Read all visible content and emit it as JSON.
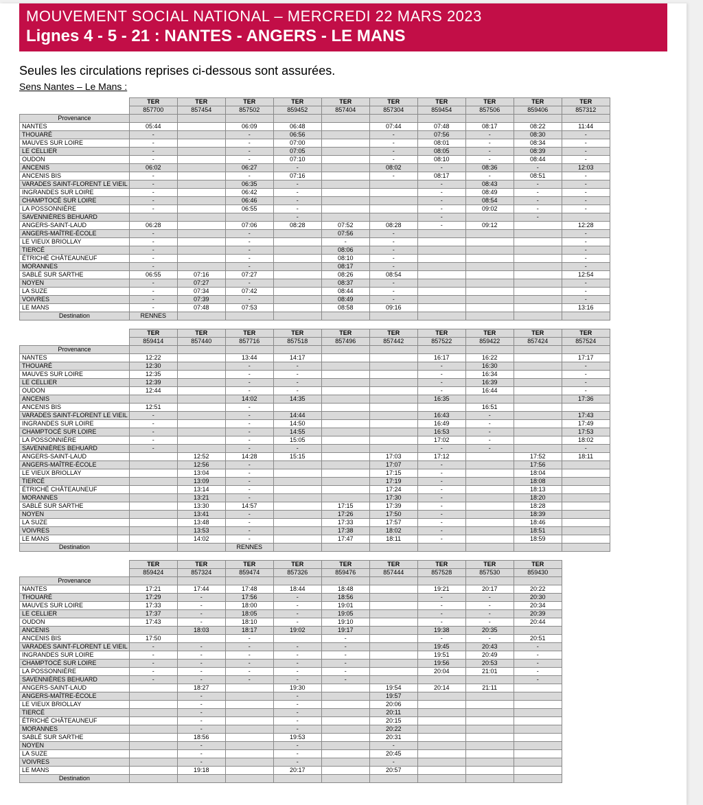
{
  "colors": {
    "banner_bg": "#c20e47",
    "banner_fg": "#ffffff",
    "grid": "#888888",
    "shade": "#d9d9d9"
  },
  "banner": {
    "title": "MOUVEMENT SOCIAL NATIONAL – MERCREDI 22 MARS 2023",
    "subtitle": "Lignes 4 - 5 - 21 : NANTES - ANGERS - LE MANS"
  },
  "intro": "Seules les circulations reprises ci-dessous sont assurées.",
  "direction": "Sens Nantes – Le Mans :",
  "labels": {
    "ter": "TER",
    "provenance": "Provenance",
    "destination": "Destination",
    "rennes": "RENNES"
  },
  "stations": [
    "NANTES",
    "THOUARÉ",
    "MAUVES SUR LOIRE",
    "LE CELLIER",
    "OUDON",
    "ANCENIS",
    "ANCENIS BIS",
    "VARADES SAINT-FLORENT LE VIEIL",
    "INGRANDES SUR LOIRE",
    "CHAMPTOCÉ SUR LOIRE",
    "LA POSSONNIÈRE",
    "SAVENNIÈRES BEHUARD",
    "ANGERS-SAINT-LAUD",
    "ANGERS-MAÎTRE-ÉCOLE",
    "LE VIEUX BRIOLLAY",
    "TIERCÉ",
    "ÉTRICHÉ CHÂTEAUNEUF",
    "MORANNES",
    "SABLÉ SUR SARTHE",
    "NOYEN",
    "LA SUZE",
    "VOIVRES",
    "LE MANS"
  ],
  "tables": [
    {
      "trains": [
        "857700",
        "857454",
        "857502",
        "859452",
        "857404",
        "857304",
        "859454",
        "857506",
        "859406",
        "857312"
      ],
      "dest_row": [
        "RENNES",
        "",
        "",
        "",
        "",
        "",
        "",
        "",
        "",
        ""
      ],
      "rows": [
        [
          "05:44",
          "",
          "06:09",
          "06:48",
          "",
          "07:44",
          "07:48",
          "08:17",
          "08:22",
          "11:44"
        ],
        [
          "-",
          "",
          "-",
          "06:56",
          "",
          "-",
          "07:56",
          "-",
          "08:30",
          "-"
        ],
        [
          "-",
          "",
          "-",
          "07:00",
          "",
          "-",
          "08:01",
          "-",
          "08:34",
          "-"
        ],
        [
          "-",
          "",
          "-",
          "07:05",
          "",
          "-",
          "08:05",
          "-",
          "08:39",
          "-"
        ],
        [
          "-",
          "",
          "-",
          "07:10",
          "",
          "-",
          "08:10",
          "-",
          "08:44",
          "-"
        ],
        [
          "06:02",
          "",
          "06:27",
          "-",
          "",
          "08:02",
          "-",
          "08:36",
          "-",
          "12:03"
        ],
        [
          "-",
          "",
          "-",
          "07:16",
          "",
          "-",
          "08:17",
          "-",
          "08:51",
          "-"
        ],
        [
          "-",
          "",
          "06:35",
          "-",
          "",
          "",
          "-",
          "08:43",
          "-",
          "-"
        ],
        [
          "-",
          "",
          "06:42",
          "-",
          "",
          "",
          "-",
          "08:49",
          "-",
          "-"
        ],
        [
          "-",
          "",
          "06:46",
          "-",
          "",
          "",
          "-",
          "08:54",
          "-",
          "-"
        ],
        [
          "-",
          "",
          "06:55",
          "-",
          "",
          "",
          "-",
          "09:02",
          "-",
          "-"
        ],
        [
          "",
          "",
          "",
          "-",
          "",
          "",
          "-",
          "",
          "-",
          ""
        ],
        [
          "06:28",
          "",
          "07:06",
          "08:28",
          "07:52",
          "08:28",
          "-",
          "09:12",
          "",
          "12:28"
        ],
        [
          "-",
          "",
          "-",
          "",
          "07:56",
          "-",
          "",
          "",
          "",
          "-"
        ],
        [
          "-",
          "",
          "-",
          "",
          "-",
          "-",
          "",
          "",
          "",
          "-"
        ],
        [
          "-",
          "",
          "-",
          "",
          "08:06",
          "-",
          "",
          "",
          "",
          "-"
        ],
        [
          "-",
          "",
          "-",
          "",
          "08:10",
          "-",
          "",
          "",
          "",
          "-"
        ],
        [
          "-",
          "",
          "-",
          "",
          "08:17",
          "-",
          "",
          "",
          "",
          "-"
        ],
        [
          "06:55",
          "07:16",
          "07:27",
          "",
          "08:26",
          "08:54",
          "",
          "",
          "",
          "12:54"
        ],
        [
          "-",
          "07:27",
          "-",
          "",
          "08:37",
          "-",
          "",
          "",
          "",
          "-"
        ],
        [
          "-",
          "07:34",
          "07:42",
          "",
          "08:44",
          "-",
          "",
          "",
          "",
          "-"
        ],
        [
          "-",
          "07:39",
          "-",
          "",
          "08:49",
          "-",
          "",
          "",
          "",
          "-"
        ],
        [
          "-",
          "07:48",
          "07:53",
          "",
          "08:58",
          "09:16",
          "",
          "",
          "",
          "13:16"
        ]
      ]
    },
    {
      "trains": [
        "859414",
        "857440",
        "857716",
        "857518",
        "857496",
        "857442",
        "857522",
        "859422",
        "857424",
        "857524"
      ],
      "dest_row": [
        "",
        "",
        "RENNES",
        "",
        "",
        "",
        "",
        "",
        "",
        ""
      ],
      "rows": [
        [
          "12:22",
          "",
          "13:44",
          "14:17",
          "",
          "",
          "16:17",
          "16:22",
          "",
          "17:17"
        ],
        [
          "12:30",
          "",
          "-",
          "-",
          "",
          "",
          "-",
          "16:30",
          "",
          "-"
        ],
        [
          "12:35",
          "",
          "-",
          "-",
          "",
          "",
          "-",
          "16:34",
          "",
          "-"
        ],
        [
          "12:39",
          "",
          "-",
          "-",
          "",
          "",
          "-",
          "16:39",
          "",
          "-"
        ],
        [
          "12:44",
          "",
          "-",
          "-",
          "",
          "",
          "-",
          "16:44",
          "",
          "-"
        ],
        [
          "",
          "",
          "14:02",
          "14:35",
          "",
          "",
          "16:35",
          "",
          "",
          "17:36"
        ],
        [
          "12:51",
          "",
          "-",
          "",
          "",
          "",
          "",
          "16:51",
          "",
          ""
        ],
        [
          "-",
          "",
          "-",
          "14:44",
          "",
          "",
          "16:43",
          "-",
          "",
          "17:43"
        ],
        [
          "-",
          "",
          "-",
          "14:50",
          "",
          "",
          "16:49",
          "-",
          "",
          "17:49"
        ],
        [
          "-",
          "",
          "-",
          "14:55",
          "",
          "",
          "16:53",
          "-",
          "",
          "17:53"
        ],
        [
          "-",
          "",
          "-",
          "15:05",
          "",
          "",
          "17:02",
          "-",
          "",
          "18:02"
        ],
        [
          "-",
          "",
          "-",
          "-",
          "",
          "",
          "-",
          "-",
          "",
          "-"
        ],
        [
          "",
          "12:52",
          "14:28",
          "15:15",
          "",
          "17:03",
          "17:12",
          "",
          "17:52",
          "18:11"
        ],
        [
          "",
          "12:56",
          "-",
          "",
          "",
          "17:07",
          "-",
          "",
          "17:56",
          ""
        ],
        [
          "",
          "13:04",
          "-",
          "",
          "",
          "17:15",
          "-",
          "",
          "18:04",
          ""
        ],
        [
          "",
          "13:09",
          "-",
          "",
          "",
          "17:19",
          "-",
          "",
          "18:08",
          ""
        ],
        [
          "",
          "13:14",
          "-",
          "",
          "",
          "17:24",
          "-",
          "",
          "18:13",
          ""
        ],
        [
          "",
          "13:21",
          "-",
          "",
          "",
          "17:30",
          "-",
          "",
          "18:20",
          ""
        ],
        [
          "",
          "13:30",
          "14:57",
          "",
          "17:15",
          "17:39",
          "-",
          "",
          "18:28",
          ""
        ],
        [
          "",
          "13:41",
          "-",
          "",
          "17:26",
          "17:50",
          "-",
          "",
          "18:39",
          ""
        ],
        [
          "",
          "13:48",
          "-",
          "",
          "17:33",
          "17:57",
          "-",
          "",
          "18:46",
          ""
        ],
        [
          "",
          "13:53",
          "-",
          "",
          "17:38",
          "18:02",
          "-",
          "",
          "18:51",
          ""
        ],
        [
          "",
          "14:02",
          "-",
          "",
          "17:47",
          "18:11",
          "-",
          "",
          "18:59",
          ""
        ]
      ]
    },
    {
      "trains": [
        "859424",
        "857324",
        "859474",
        "857326",
        "859476",
        "857444",
        "857528",
        "857530",
        "859430"
      ],
      "dest_row": [
        "",
        "",
        "",
        "",
        "",
        "",
        "",
        "",
        ""
      ],
      "rows": [
        [
          "17:21",
          "17:44",
          "17:48",
          "18:44",
          "18:48",
          "",
          "19:21",
          "20:17",
          "20:22"
        ],
        [
          "17:29",
          "-",
          "17:56",
          "-",
          "18:56",
          "",
          "-",
          "-",
          "20:30"
        ],
        [
          "17:33",
          "-",
          "18:00",
          "-",
          "19:01",
          "",
          "-",
          "-",
          "20:34"
        ],
        [
          "17:37",
          "-",
          "18:05",
          "-",
          "19:05",
          "",
          "-",
          "-",
          "20:39"
        ],
        [
          "17:43",
          "-",
          "18:10",
          "-",
          "19:10",
          "",
          "-",
          "-",
          "20:44"
        ],
        [
          "",
          "18:03",
          "18:17",
          "19:02",
          "19:17",
          "",
          "19:38",
          "20:35",
          ""
        ],
        [
          "17:50",
          "",
          "-",
          "",
          "-",
          "",
          "-",
          "-",
          "20:51"
        ],
        [
          "-",
          "-",
          "-",
          "-",
          "-",
          "",
          "19:45",
          "20:43",
          "-"
        ],
        [
          "-",
          "-",
          "-",
          "-",
          "-",
          "",
          "19:51",
          "20:49",
          "-"
        ],
        [
          "-",
          "-",
          "-",
          "-",
          "-",
          "",
          "19:56",
          "20:53",
          "-"
        ],
        [
          "-",
          "-",
          "-",
          "-",
          "-",
          "",
          "20:04",
          "21:01",
          "-"
        ],
        [
          "-",
          "-",
          "-",
          "-",
          "-",
          "",
          "",
          "",
          "-"
        ],
        [
          "",
          "18:27",
          "",
          "19:30",
          "",
          "19:54",
          "20:14",
          "21:11",
          ""
        ],
        [
          "",
          "-",
          "",
          "-",
          "",
          "19:57",
          "",
          "",
          ""
        ],
        [
          "",
          "-",
          "",
          "-",
          "",
          "20:06",
          "",
          "",
          ""
        ],
        [
          "",
          "-",
          "",
          "-",
          "",
          "20:11",
          "",
          "",
          ""
        ],
        [
          "",
          "-",
          "",
          "-",
          "",
          "20:15",
          "",
          "",
          ""
        ],
        [
          "",
          "-",
          "",
          "-",
          "",
          "20:22",
          "",
          "",
          ""
        ],
        [
          "",
          "18:56",
          "",
          "19:53",
          "",
          "20:31",
          "",
          "",
          ""
        ],
        [
          "",
          "-",
          "",
          "-",
          "",
          "-",
          "",
          "",
          ""
        ],
        [
          "",
          "-",
          "",
          "-",
          "",
          "20:45",
          "",
          "",
          ""
        ],
        [
          "",
          "-",
          "",
          "-",
          "",
          "-",
          "",
          "",
          ""
        ],
        [
          "",
          "19:18",
          "",
          "20:17",
          "",
          "20:57",
          "",
          "",
          ""
        ]
      ]
    }
  ]
}
